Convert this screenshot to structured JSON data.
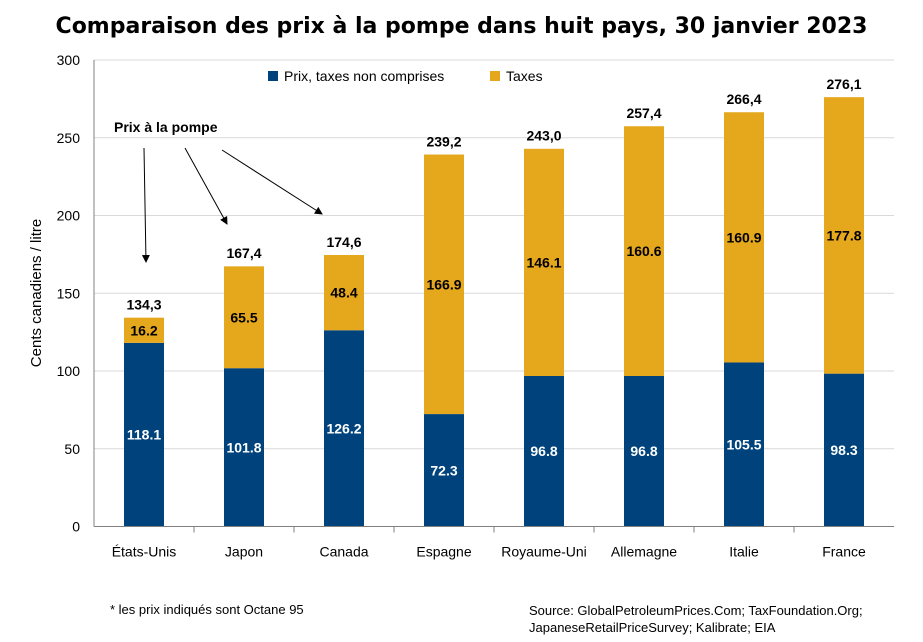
{
  "chart_data": {
    "type": "bar",
    "stacked": true,
    "title": "Comparaison des prix à la pompe dans huit pays, 30 janvier 2023",
    "ylabel": "Cents canadiens / litre",
    "xlabel": "",
    "ylim": [
      0,
      300
    ],
    "yticks": [
      0,
      50,
      100,
      150,
      200,
      250,
      300
    ],
    "grid": true,
    "legend_position": "top",
    "categories": [
      "États-Unis",
      "Japon",
      "Canada",
      "Espagne",
      "Royaume-Uni",
      "Allemagne",
      "Italie",
      "France"
    ],
    "series": [
      {
        "name": "Prix, taxes non comprises",
        "color": "#00437c",
        "values": [
          118.1,
          101.8,
          126.2,
          72.3,
          96.8,
          96.8,
          105.5,
          98.3
        ],
        "labels": [
          "118.1",
          "101.8",
          "126.2",
          "72.3",
          "96.8",
          "96.8",
          "105.5",
          "98.3"
        ]
      },
      {
        "name": "Taxes",
        "color": "#e5a71c",
        "values": [
          16.2,
          65.5,
          48.4,
          166.9,
          146.1,
          160.6,
          160.9,
          177.8
        ],
        "labels": [
          "16.2",
          "65.5",
          "48.4",
          "166.9",
          "146.1",
          "160.6",
          "160.9",
          "177.8"
        ]
      }
    ],
    "totals": [
      134.3,
      167.4,
      174.6,
      239.2,
      243.0,
      257.4,
      266.4,
      276.1
    ],
    "total_labels": [
      "134,3",
      "167,4",
      "174,6",
      "239,2",
      "243,0",
      "257,4",
      "266,4",
      "276,1"
    ],
    "annotation": {
      "text": "Prix à la pompe",
      "arrow_targets": [
        "États-Unis",
        "Japon",
        "Canada"
      ]
    }
  },
  "footnote": "* les prix indiqués sont Octane 95",
  "source_lines": [
    "Source: GlobalPetroleumPrices.Com; TaxFoundation.Org;",
    "JapaneseRetailPriceSurvey; Kalibrate; EIA"
  ]
}
